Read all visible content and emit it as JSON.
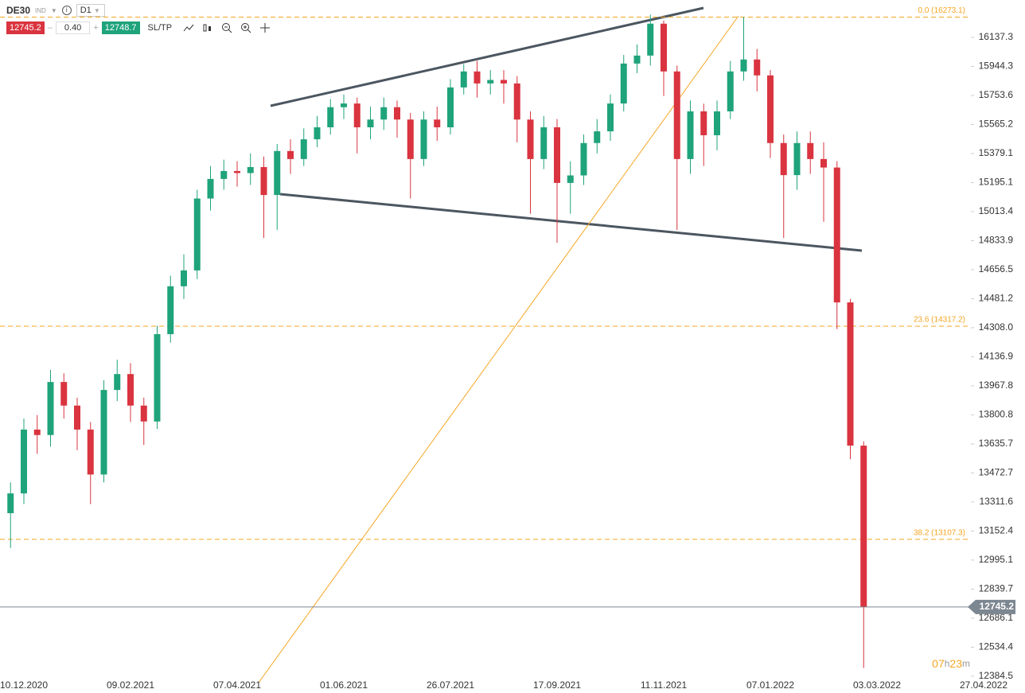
{
  "toolbar": {
    "symbol": "DE30",
    "market": "IND",
    "interval": "D1",
    "bid": "12745.2",
    "volume": "0.40",
    "ask": "12748.7",
    "sltp": "SL/TP"
  },
  "chart_data": {
    "type": "candlestick",
    "log": true,
    "colors": {
      "up": "#1fa37a",
      "down": "#d9343f",
      "level": "#f5a623",
      "current": "#7d8791"
    },
    "categories": [
      null,
      "10.12.2020",
      null,
      null,
      null,
      null,
      null,
      null,
      null,
      "09.02.2021",
      null,
      null,
      null,
      null,
      null,
      null,
      null,
      "07.04.2021",
      null,
      null,
      null,
      null,
      null,
      null,
      null,
      "01.06.2021",
      null,
      null,
      null,
      null,
      null,
      null,
      null,
      "26.07.2021",
      null,
      null,
      null,
      null,
      null,
      null,
      null,
      "17.09.2021",
      null,
      null,
      null,
      null,
      null,
      null,
      null,
      "11.11.2021",
      null,
      null,
      null,
      null,
      null,
      null,
      null,
      "07.01.2022",
      null,
      null,
      null,
      null,
      null,
      null,
      null,
      "03.03.2022",
      null,
      null,
      null,
      null,
      null,
      null,
      null,
      "27.04.2022"
    ],
    "open": [
      13250,
      13359,
      13717,
      13686,
      13990,
      13854,
      13717,
      13464,
      13944,
      14036,
      13854,
      13763,
      14270,
      14556,
      14652,
      15095,
      15218,
      15268,
      15255,
      15293,
      15117,
      15395,
      15344,
      15470,
      15547,
      15677,
      15701,
      15547,
      15597,
      15677,
      15597,
      15344,
      15597,
      15547,
      15806,
      15911,
      15832,
      15855,
      15832,
      15597,
      15344,
      15547,
      15193,
      15240,
      15446,
      15521,
      15701,
      15963,
      16016,
      16229,
      15911,
      15344,
      15650,
      15496,
      15650,
      15911,
      15990,
      15885,
      15446,
      15242,
      15446,
      15344,
      15290,
      14459,
      13626,
      null,
      null,
      null,
      null,
      null,
      null,
      null,
      null,
      null
    ],
    "high": [
      13420,
      13780,
      13800,
      14060,
      14040,
      13900,
      13760,
      14000,
      14120,
      14100,
      13900,
      14320,
      14620,
      14750,
      15150,
      15300,
      15340,
      15330,
      15380,
      15360,
      15440,
      15470,
      15540,
      15620,
      15730,
      15760,
      15740,
      15680,
      15740,
      15720,
      15640,
      15650,
      15680,
      15860,
      15960,
      15980,
      15920,
      15920,
      15880,
      15650,
      15620,
      15600,
      15330,
      15500,
      15600,
      15760,
      16020,
      16090,
      16290,
      16250,
      15950,
      15720,
      15700,
      15720,
      15980,
      16273,
      16060,
      15920,
      15500,
      15520,
      15520,
      15450,
      15330,
      14480,
      13650,
      null,
      null,
      null,
      null,
      null,
      null,
      null,
      null,
      null
    ],
    "low": [
      13060,
      13300,
      13580,
      13620,
      13780,
      13600,
      13300,
      13420,
      13880,
      13760,
      13630,
      13720,
      14220,
      14480,
      14600,
      15020,
      15150,
      15170,
      15180,
      14851,
      14900,
      15250,
      15300,
      15420,
      15500,
      15600,
      15380,
      15470,
      15530,
      15480,
      15095,
      15300,
      15460,
      15500,
      15760,
      15740,
      15760,
      15700,
      15450,
      15000,
      15280,
      14820,
      15000,
      15180,
      15380,
      15460,
      15650,
      15900,
      15950,
      15750,
      14900,
      15250,
      15300,
      15400,
      15600,
      15850,
      15780,
      15350,
      14850,
      15150,
      15250,
      14950,
      14300,
      13550,
      12427,
      null,
      null,
      null,
      null,
      null,
      null,
      null,
      null,
      null
    ],
    "close": [
      13359,
      13717,
      13686,
      13990,
      13854,
      13717,
      13464,
      13944,
      14036,
      13854,
      13763,
      14270,
      14556,
      14652,
      15095,
      15218,
      15268,
      15255,
      15293,
      15117,
      15395,
      15344,
      15470,
      15547,
      15677,
      15701,
      15547,
      15597,
      15677,
      15597,
      15344,
      15597,
      15547,
      15806,
      15911,
      15832,
      15855,
      15832,
      15597,
      15344,
      15547,
      15193,
      15240,
      15446,
      15521,
      15701,
      15963,
      16016,
      16229,
      15911,
      15344,
      15650,
      15496,
      15650,
      15911,
      15990,
      15885,
      15446,
      15242,
      15446,
      15344,
      15290,
      14459,
      13626,
      12745,
      null,
      null,
      null,
      null,
      null,
      null,
      null,
      null,
      null
    ],
    "ylim": [
      12319,
      16389
    ],
    "yticks": [
      16137.3,
      15944.3,
      15753.6,
      15565.2,
      15379.1,
      15195.1,
      15013.4,
      14833.9,
      14656.5,
      14481.2,
      {
        "value": 14308,
        "label": "14308.0"
      },
      14136.9,
      13967.8,
      13800.8,
      13635.7,
      13472.7,
      13311.6,
      13152.4,
      12995.1,
      12839.7,
      12686.1,
      12534.4,
      12384.5
    ],
    "levels": [
      {
        "label": "0.0 (16273.1)",
        "value": 16273.1
      },
      {
        "label": "23.6 (14317.2)",
        "value": 14317.2
      },
      {
        "label": "38.2 (13107.3)",
        "value": 13107.3
      }
    ],
    "current_price": 12745.2,
    "countdown": [
      "07",
      "h",
      "23",
      "m"
    ]
  }
}
